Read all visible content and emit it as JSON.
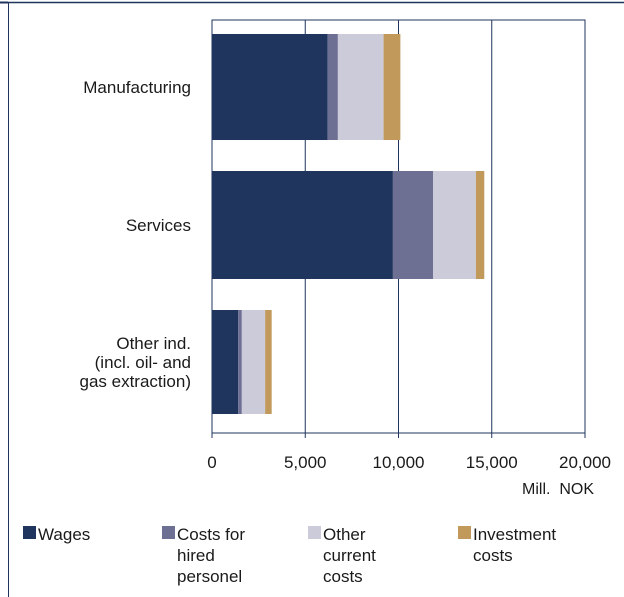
{
  "chart_data": {
    "type": "bar",
    "orientation": "horizontal",
    "stacked": true,
    "categories": [
      [
        "Manufacturing"
      ],
      [
        "Services"
      ],
      [
        "Other ind.",
        "(incl. oil- and",
        "gas extraction)"
      ]
    ],
    "series": [
      {
        "name": "Wages",
        "legend_lines": [
          "Wages"
        ],
        "color": "#1f355e",
        "values": [
          6200,
          9700,
          1400
        ]
      },
      {
        "name": "Costs for hired personel",
        "legend_lines": [
          "Costs for",
          "hired",
          "personel"
        ],
        "color": "#6d6f93",
        "values": [
          550,
          2150,
          200
        ]
      },
      {
        "name": "Other current costs",
        "legend_lines": [
          "Other",
          "current",
          "costs"
        ],
        "color": "#cbcbd9",
        "values": [
          2450,
          2300,
          1250
        ]
      },
      {
        "name": "Investment costs",
        "legend_lines": [
          "Investment",
          "costs"
        ],
        "color": "#c19a5b",
        "values": [
          900,
          450,
          350
        ]
      }
    ],
    "xlim": [
      0,
      20000
    ],
    "xticks": [
      0,
      5000,
      10000,
      15000,
      20000
    ],
    "xtick_labels": [
      "0",
      "5,000",
      "10,000",
      "15,000",
      "20,000"
    ],
    "xlabel": "Mill.  NOK",
    "ylabel": "",
    "title": "",
    "grid": "vertical",
    "legend_position": "bottom"
  }
}
